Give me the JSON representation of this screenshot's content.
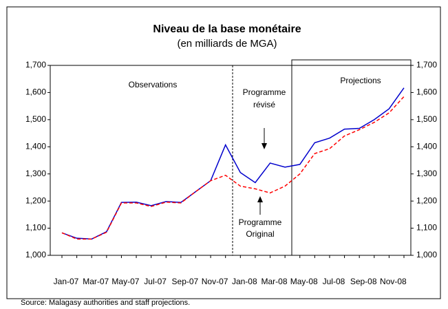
{
  "chart_data": {
    "type": "line",
    "title": "Niveau de la base monétaire",
    "subtitle": "(en milliards de MGA)",
    "categories": [
      "Jan-07",
      null,
      "Mar-07",
      null,
      "May-07",
      null,
      "Jul-07",
      null,
      "Sep-07",
      null,
      "Nov-07",
      null,
      "Jan-08",
      null,
      "Mar-08",
      null,
      "May-08",
      null,
      "Jul-08",
      null,
      "Sep-08",
      null,
      "Nov-08",
      null
    ],
    "series": [
      {
        "color": "#0000cc",
        "dash": false,
        "values": [
          1083,
          1063,
          1060,
          1087,
          1195,
          1196,
          1183,
          1198,
          1195,
          1235,
          1275,
          1407,
          1305,
          1268,
          1340,
          1325,
          1335,
          1415,
          1432,
          1465,
          1468,
          1500,
          1540,
          1617
        ]
      },
      {
        "color": "#ff0000",
        "dash": true,
        "values": [
          1083,
          1060,
          1060,
          1085,
          1193,
          1193,
          1180,
          1196,
          1193,
          1235,
          1275,
          1295,
          1255,
          1245,
          1230,
          1255,
          1300,
          1375,
          1393,
          1440,
          1463,
          1490,
          1525,
          1585
        ]
      }
    ],
    "ylim": [
      1000,
      1700
    ],
    "yticks": [
      {
        "value": 1000,
        "label": "1,000"
      },
      {
        "value": 1100,
        "label": "1,100"
      },
      {
        "value": 1200,
        "label": "1,200"
      },
      {
        "value": 1300,
        "label": "1,300"
      },
      {
        "value": 1400,
        "label": "1,400"
      },
      {
        "value": 1500,
        "label": "1,500"
      },
      {
        "value": 1600,
        "label": "1,600"
      },
      {
        "value": 1700,
        "label": "1,700"
      }
    ],
    "y2lim": [
      1000,
      1700
    ],
    "y2ticks": [
      {
        "value": 1000,
        "label": "1,000"
      },
      {
        "value": 1100,
        "label": "1,100"
      },
      {
        "value": 1200,
        "label": "1,200"
      },
      {
        "value": 1300,
        "label": "1,300"
      },
      {
        "value": 1400,
        "label": "1,400"
      },
      {
        "value": 1500,
        "label": "1,500"
      },
      {
        "value": 1600,
        "label": "1,600"
      },
      {
        "value": 1700,
        "label": "1,700"
      }
    ],
    "annotations": {
      "observations": "Observations",
      "projections": "Projections",
      "revised": [
        "Programme",
        "révisé"
      ],
      "original": [
        "Programme",
        "Original"
      ]
    },
    "source": "Source: Malagasy authorities and staff projections."
  }
}
